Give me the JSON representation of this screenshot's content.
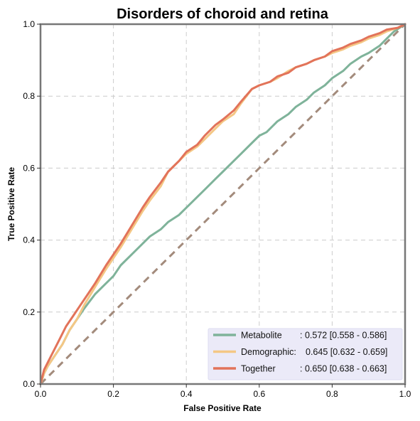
{
  "chart_data": {
    "type": "line",
    "title": "Disorders of choroid and retina",
    "xlabel": "False Positive Rate",
    "ylabel": "True Positive Rate",
    "xlim": [
      0,
      1
    ],
    "ylim": [
      0,
      1
    ],
    "xticks": [
      "0.0",
      "0.2",
      "0.4",
      "0.6",
      "0.8",
      "1.0"
    ],
    "yticks": [
      "0.0",
      "0.2",
      "0.4",
      "0.6",
      "0.8",
      "1.0"
    ],
    "grid": true,
    "legend_position": "bottom-right",
    "series": [
      {
        "name": "Metabolite",
        "label_name": "Metabolite",
        "label_stats": ": 0.572 [0.558 - 0.586]",
        "color": "#7fb39a",
        "x": [
          0,
          0.01,
          0.02,
          0.04,
          0.06,
          0.08,
          0.1,
          0.12,
          0.15,
          0.18,
          0.2,
          0.22,
          0.25,
          0.28,
          0.3,
          0.33,
          0.35,
          0.38,
          0.4,
          0.42,
          0.45,
          0.48,
          0.5,
          0.53,
          0.55,
          0.58,
          0.6,
          0.62,
          0.65,
          0.68,
          0.7,
          0.73,
          0.75,
          0.78,
          0.8,
          0.83,
          0.85,
          0.88,
          0.9,
          0.93,
          0.95,
          0.97,
          1.0
        ],
        "y": [
          0,
          0.03,
          0.05,
          0.08,
          0.11,
          0.15,
          0.18,
          0.21,
          0.25,
          0.28,
          0.3,
          0.33,
          0.36,
          0.39,
          0.41,
          0.43,
          0.45,
          0.47,
          0.49,
          0.51,
          0.54,
          0.57,
          0.59,
          0.62,
          0.64,
          0.67,
          0.69,
          0.7,
          0.73,
          0.75,
          0.77,
          0.79,
          0.81,
          0.83,
          0.85,
          0.87,
          0.89,
          0.91,
          0.92,
          0.94,
          0.96,
          0.98,
          1.0
        ]
      },
      {
        "name": "Demographic",
        "label_name": "Demographic:",
        "label_stats": "0.645 [0.632 - 0.659]",
        "color": "#f4c785",
        "x": [
          0,
          0.01,
          0.02,
          0.04,
          0.06,
          0.08,
          0.1,
          0.12,
          0.15,
          0.18,
          0.2,
          0.22,
          0.25,
          0.28,
          0.3,
          0.33,
          0.35,
          0.38,
          0.4,
          0.43,
          0.45,
          0.48,
          0.5,
          0.53,
          0.55,
          0.58,
          0.6,
          0.63,
          0.65,
          0.68,
          0.7,
          0.73,
          0.75,
          0.78,
          0.8,
          0.83,
          0.85,
          0.88,
          0.9,
          0.93,
          0.95,
          0.98,
          1.0
        ],
        "y": [
          0,
          0.03,
          0.05,
          0.08,
          0.11,
          0.15,
          0.18,
          0.22,
          0.27,
          0.32,
          0.35,
          0.38,
          0.43,
          0.48,
          0.51,
          0.55,
          0.59,
          0.62,
          0.64,
          0.66,
          0.68,
          0.71,
          0.73,
          0.75,
          0.78,
          0.82,
          0.83,
          0.84,
          0.85,
          0.87,
          0.88,
          0.89,
          0.9,
          0.91,
          0.92,
          0.93,
          0.94,
          0.95,
          0.96,
          0.97,
          0.98,
          0.99,
          1.0
        ]
      },
      {
        "name": "Together",
        "label_name": "Together",
        "label_stats": ": 0.650 [0.638 - 0.663]",
        "color": "#e2735a",
        "x": [
          0,
          0.01,
          0.02,
          0.03,
          0.05,
          0.07,
          0.09,
          0.11,
          0.13,
          0.15,
          0.18,
          0.2,
          0.22,
          0.25,
          0.28,
          0.3,
          0.33,
          0.35,
          0.38,
          0.4,
          0.43,
          0.45,
          0.48,
          0.5,
          0.53,
          0.55,
          0.58,
          0.6,
          0.63,
          0.65,
          0.68,
          0.7,
          0.73,
          0.75,
          0.78,
          0.8,
          0.83,
          0.85,
          0.88,
          0.9,
          0.93,
          0.95,
          0.98,
          1.0
        ],
        "y": [
          0,
          0.04,
          0.06,
          0.08,
          0.12,
          0.16,
          0.19,
          0.22,
          0.25,
          0.28,
          0.33,
          0.36,
          0.39,
          0.44,
          0.49,
          0.52,
          0.56,
          0.59,
          0.62,
          0.645,
          0.665,
          0.69,
          0.72,
          0.735,
          0.76,
          0.785,
          0.82,
          0.83,
          0.84,
          0.855,
          0.865,
          0.88,
          0.89,
          0.9,
          0.91,
          0.925,
          0.935,
          0.945,
          0.955,
          0.965,
          0.975,
          0.985,
          0.99,
          1.0
        ]
      }
    ],
    "chance_line": {
      "x": [
        0,
        1
      ],
      "y": [
        0,
        1
      ],
      "color": "#a38b7c"
    }
  }
}
